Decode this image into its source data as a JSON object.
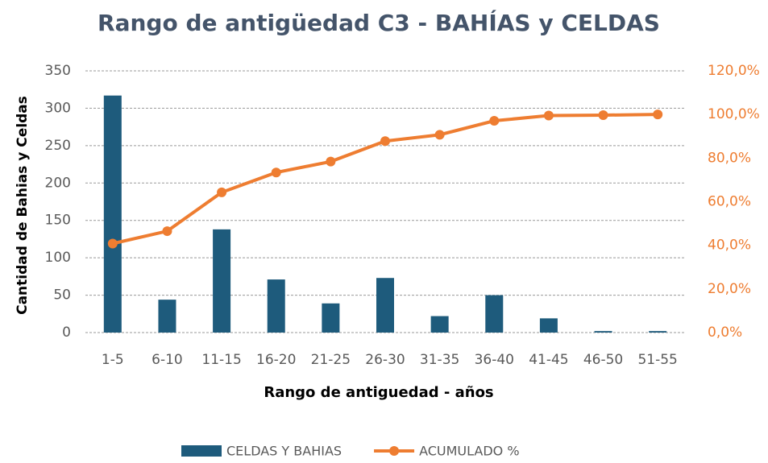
{
  "chart_data": {
    "type": "bar",
    "title": "Rango de antigüedad  C3 - BAHÍAS y CELDAS",
    "x_label": "Rango de antiguedad - años",
    "y_label": "Cantidad de Bahias y Celdas",
    "categories": [
      "1-5",
      "6-10",
      "11-15",
      "16-20",
      "21-25",
      "26-30",
      "31-35",
      "36-40",
      "41-45",
      "46-50",
      "51-55"
    ],
    "series": [
      {
        "name": "CELDAS Y BAHIAS",
        "type": "bar",
        "color": "#1e5b7c",
        "values": [
          317,
          44,
          138,
          71,
          39,
          73,
          22,
          50,
          19,
          2,
          2
        ]
      },
      {
        "name": "ACUMULADO  %",
        "type": "line",
        "axis": "y2",
        "color": "#ee7d31",
        "values": [
          40.8,
          46.5,
          64.3,
          73.4,
          78.4,
          87.8,
          90.7,
          97.1,
          99.5,
          99.7,
          100
        ]
      }
    ],
    "ylim": [
      0,
      350
    ],
    "yticks": [
      0,
      50,
      100,
      150,
      200,
      250,
      300,
      350
    ],
    "y2lim": [
      0,
      120
    ],
    "y2ticks": [
      {
        "value": 0,
        "label": "0,0%"
      },
      {
        "value": 20,
        "label": "20,0%"
      },
      {
        "value": 40,
        "label": "40,0%"
      },
      {
        "value": 60,
        "label": "60,0%"
      },
      {
        "value": 80,
        "label": "80,0%"
      },
      {
        "value": 100,
        "label": "100,0%"
      },
      {
        "value": 120,
        "label": "120,0%"
      }
    ],
    "grid": true,
    "legend": "bottom"
  }
}
